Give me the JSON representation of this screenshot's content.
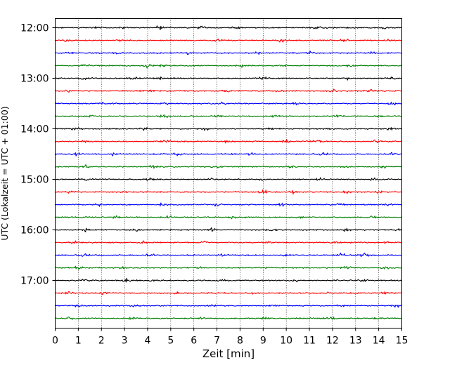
{
  "chart_data": {
    "type": "line",
    "title": "",
    "xlabel": "Zeit  [min]",
    "ylabel": "UTC (Lokalzeit = UTC + 01:00)",
    "xlim": [
      0,
      15
    ],
    "x_ticks": [
      "0",
      "1",
      "2",
      "3",
      "4",
      "5",
      "6",
      "7",
      "8",
      "9",
      "10",
      "11",
      "12",
      "13",
      "14",
      "15"
    ],
    "y_ticks": [
      "12:00",
      "13:00",
      "14:00",
      "15:00",
      "16:00",
      "17:00"
    ],
    "trace_interval_min": 15,
    "trace_start": "12:00",
    "trace_count": 24,
    "trace_colors": [
      "#000000",
      "#ff0000",
      "#0000ff",
      "#008000"
    ],
    "grid": "vertical dotted",
    "series": [
      {
        "trace": 0,
        "start": "12:00",
        "color": "#000000",
        "events": [
          {
            "x": 1.8,
            "amp": 0.9
          },
          {
            "x": 3.0,
            "amp": 0.8
          },
          {
            "x": 4.5,
            "amp": 1.2
          },
          {
            "x": 6.3,
            "amp": 1.0
          },
          {
            "x": 7.8,
            "amp": 0.8
          },
          {
            "x": 11.3,
            "amp": 1.0
          },
          {
            "x": 14.2,
            "amp": 0.9
          }
        ]
      },
      {
        "trace": 1,
        "start": "12:15",
        "color": "#ff0000",
        "events": [
          {
            "x": 0.5,
            "amp": 0.9
          },
          {
            "x": 2.8,
            "amp": 0.8
          },
          {
            "x": 7.1,
            "amp": 0.9
          },
          {
            "x": 9.8,
            "amp": 1.1
          },
          {
            "x": 12.5,
            "amp": 0.9
          },
          {
            "x": 14.4,
            "amp": 0.8
          }
        ]
      },
      {
        "trace": 2,
        "start": "12:30",
        "color": "#0000ff",
        "events": [
          {
            "x": 0.6,
            "amp": 0.9
          },
          {
            "x": 2.7,
            "amp": 0.8
          },
          {
            "x": 5.7,
            "amp": 0.9
          },
          {
            "x": 8.8,
            "amp": 0.8
          },
          {
            "x": 11.0,
            "amp": 0.9
          },
          {
            "x": 13.7,
            "amp": 0.8
          }
        ]
      },
      {
        "trace": 3,
        "start": "12:45",
        "color": "#008000",
        "events": [
          {
            "x": 1.3,
            "amp": 0.9
          },
          {
            "x": 4.0,
            "amp": 1.2
          },
          {
            "x": 4.7,
            "amp": 1.0
          },
          {
            "x": 8.0,
            "amp": 1.0
          },
          {
            "x": 9.9,
            "amp": 0.8
          },
          {
            "x": 12.8,
            "amp": 0.9
          }
        ]
      },
      {
        "trace": 4,
        "start": "13:00",
        "color": "#000000",
        "events": [
          {
            "x": 1.2,
            "amp": 1.0
          },
          {
            "x": 3.4,
            "amp": 1.0
          },
          {
            "x": 4.6,
            "amp": 0.9
          },
          {
            "x": 9.0,
            "amp": 1.1
          },
          {
            "x": 12.6,
            "amp": 0.9
          },
          {
            "x": 14.6,
            "amp": 0.8
          }
        ]
      },
      {
        "trace": 5,
        "start": "13:15",
        "color": "#ff0000",
        "events": [
          {
            "x": 0.6,
            "amp": 0.8
          },
          {
            "x": 4.1,
            "amp": 0.8
          },
          {
            "x": 7.4,
            "amp": 0.9
          },
          {
            "x": 9.8,
            "amp": 1.2
          },
          {
            "x": 12.0,
            "amp": 0.8
          },
          {
            "x": 13.6,
            "amp": 1.2
          }
        ]
      },
      {
        "trace": 6,
        "start": "13:30",
        "color": "#0000ff",
        "events": [
          {
            "x": 2.0,
            "amp": 0.9
          },
          {
            "x": 4.8,
            "amp": 0.8
          },
          {
            "x": 7.3,
            "amp": 0.9
          },
          {
            "x": 10.4,
            "amp": 0.8
          },
          {
            "x": 14.6,
            "amp": 1.0
          }
        ]
      },
      {
        "trace": 7,
        "start": "13:45",
        "color": "#008000",
        "events": [
          {
            "x": 1.5,
            "amp": 0.8
          },
          {
            "x": 4.7,
            "amp": 1.0
          },
          {
            "x": 7.1,
            "amp": 0.8
          },
          {
            "x": 9.5,
            "amp": 0.9
          },
          {
            "x": 12.2,
            "amp": 0.8
          },
          {
            "x": 14.0,
            "amp": 0.8
          }
        ]
      },
      {
        "trace": 8,
        "start": "14:00",
        "color": "#000000",
        "events": [
          {
            "x": 0.9,
            "amp": 0.8
          },
          {
            "x": 3.8,
            "amp": 1.2
          },
          {
            "x": 6.5,
            "amp": 0.9
          },
          {
            "x": 9.3,
            "amp": 0.9
          },
          {
            "x": 11.8,
            "amp": 0.8
          },
          {
            "x": 14.5,
            "amp": 0.8
          }
        ]
      },
      {
        "trace": 9,
        "start": "14:15",
        "color": "#ff0000",
        "events": [
          {
            "x": 1.3,
            "amp": 0.8
          },
          {
            "x": 4.8,
            "amp": 0.8
          },
          {
            "x": 7.4,
            "amp": 0.8
          },
          {
            "x": 10.0,
            "amp": 1.0
          },
          {
            "x": 11.3,
            "amp": 1.3
          },
          {
            "x": 13.9,
            "amp": 0.9
          }
        ]
      },
      {
        "trace": 10,
        "start": "14:30",
        "color": "#0000ff",
        "events": [
          {
            "x": 0.9,
            "amp": 1.1
          },
          {
            "x": 2.5,
            "amp": 0.8
          },
          {
            "x": 5.3,
            "amp": 0.8
          },
          {
            "x": 8.5,
            "amp": 0.9
          },
          {
            "x": 11.6,
            "amp": 0.8
          },
          {
            "x": 14.6,
            "amp": 0.8
          }
        ]
      },
      {
        "trace": 11,
        "start": "14:45",
        "color": "#008000",
        "events": [
          {
            "x": 1.3,
            "amp": 1.0
          },
          {
            "x": 4.2,
            "amp": 0.8
          },
          {
            "x": 7.0,
            "amp": 0.8
          },
          {
            "x": 10.2,
            "amp": 0.9
          },
          {
            "x": 12.5,
            "amp": 0.8
          },
          {
            "x": 14.2,
            "amp": 0.9
          }
        ]
      },
      {
        "trace": 12,
        "start": "15:00",
        "color": "#000000",
        "events": [
          {
            "x": 1.3,
            "amp": 0.9
          },
          {
            "x": 4.1,
            "amp": 0.9
          },
          {
            "x": 6.8,
            "amp": 0.9
          },
          {
            "x": 9.0,
            "amp": 0.8
          },
          {
            "x": 11.5,
            "amp": 0.8
          },
          {
            "x": 13.8,
            "amp": 0.9
          }
        ]
      },
      {
        "trace": 13,
        "start": "15:15",
        "color": "#ff0000",
        "events": [
          {
            "x": 0.7,
            "amp": 0.9
          },
          {
            "x": 3.0,
            "amp": 0.8
          },
          {
            "x": 9.0,
            "amp": 1.2
          },
          {
            "x": 10.3,
            "amp": 1.3
          },
          {
            "x": 12.6,
            "amp": 0.9
          },
          {
            "x": 14.0,
            "amp": 0.8
          }
        ]
      },
      {
        "trace": 14,
        "start": "15:30",
        "color": "#0000ff",
        "events": [
          {
            "x": 1.9,
            "amp": 1.0
          },
          {
            "x": 4.6,
            "amp": 0.8
          },
          {
            "x": 7.0,
            "amp": 0.9
          },
          {
            "x": 9.8,
            "amp": 0.8
          },
          {
            "x": 12.3,
            "amp": 0.8
          },
          {
            "x": 14.4,
            "amp": 0.9
          }
        ]
      },
      {
        "trace": 15,
        "start": "15:45",
        "color": "#008000",
        "events": [
          {
            "x": 1.3,
            "amp": 0.9
          },
          {
            "x": 2.6,
            "amp": 1.0
          },
          {
            "x": 4.9,
            "amp": 1.0
          },
          {
            "x": 7.7,
            "amp": 0.8
          },
          {
            "x": 10.6,
            "amp": 0.8
          },
          {
            "x": 13.8,
            "amp": 0.9
          }
        ]
      },
      {
        "trace": 16,
        "start": "16:00",
        "color": "#000000",
        "events": [
          {
            "x": 1.3,
            "amp": 1.0
          },
          {
            "x": 3.6,
            "amp": 0.9
          },
          {
            "x": 6.8,
            "amp": 1.0
          },
          {
            "x": 9.4,
            "amp": 0.9
          },
          {
            "x": 12.6,
            "amp": 0.8
          },
          {
            "x": 14.8,
            "amp": 0.9
          }
        ]
      },
      {
        "trace": 17,
        "start": "16:15",
        "color": "#ff0000",
        "events": [
          {
            "x": 0.9,
            "amp": 0.8
          },
          {
            "x": 3.8,
            "amp": 0.9
          },
          {
            "x": 6.5,
            "amp": 0.8
          },
          {
            "x": 9.2,
            "amp": 0.9
          },
          {
            "x": 12.1,
            "amp": 0.9
          },
          {
            "x": 14.4,
            "amp": 0.8
          }
        ]
      },
      {
        "trace": 18,
        "start": "16:30",
        "color": "#0000ff",
        "events": [
          {
            "x": 1.3,
            "amp": 0.9
          },
          {
            "x": 4.1,
            "amp": 0.8
          },
          {
            "x": 7.3,
            "amp": 0.8
          },
          {
            "x": 10.0,
            "amp": 0.8
          },
          {
            "x": 12.4,
            "amp": 1.2
          },
          {
            "x": 13.4,
            "amp": 1.3
          }
        ]
      },
      {
        "trace": 19,
        "start": "16:45",
        "color": "#008000",
        "events": [
          {
            "x": 1.0,
            "amp": 0.9
          },
          {
            "x": 2.9,
            "amp": 1.0
          },
          {
            "x": 6.2,
            "amp": 0.9
          },
          {
            "x": 9.3,
            "amp": 0.8
          },
          {
            "x": 12.6,
            "amp": 1.1
          },
          {
            "x": 14.3,
            "amp": 0.8
          }
        ]
      },
      {
        "trace": 20,
        "start": "17:00",
        "color": "#000000",
        "events": [
          {
            "x": 1.3,
            "amp": 0.8
          },
          {
            "x": 3.1,
            "amp": 1.1
          },
          {
            "x": 4.2,
            "amp": 0.8
          },
          {
            "x": 7.2,
            "amp": 0.9
          },
          {
            "x": 10.4,
            "amp": 0.8
          },
          {
            "x": 13.3,
            "amp": 0.9
          }
        ]
      },
      {
        "trace": 21,
        "start": "17:15",
        "color": "#ff0000",
        "events": [
          {
            "x": 0.6,
            "amp": 0.8
          },
          {
            "x": 2.1,
            "amp": 0.9
          },
          {
            "x": 5.2,
            "amp": 0.8
          },
          {
            "x": 8.5,
            "amp": 0.8
          },
          {
            "x": 11.8,
            "amp": 0.8
          },
          {
            "x": 14.3,
            "amp": 0.9
          }
        ]
      },
      {
        "trace": 22,
        "start": "17:30",
        "color": "#0000ff",
        "events": [
          {
            "x": 1.0,
            "amp": 0.8
          },
          {
            "x": 3.4,
            "amp": 0.8
          },
          {
            "x": 6.8,
            "amp": 0.8
          },
          {
            "x": 9.5,
            "amp": 0.8
          },
          {
            "x": 12.4,
            "amp": 0.8
          },
          {
            "x": 14.8,
            "amp": 0.8
          }
        ]
      },
      {
        "trace": 23,
        "start": "17:45",
        "color": "#008000",
        "events": [
          {
            "x": 0.6,
            "amp": 0.8
          },
          {
            "x": 3.3,
            "amp": 0.9
          },
          {
            "x": 6.3,
            "amp": 0.8
          },
          {
            "x": 9.1,
            "amp": 0.8
          },
          {
            "x": 12.0,
            "amp": 0.8
          },
          {
            "x": 14.0,
            "amp": 0.8
          }
        ]
      }
    ]
  }
}
